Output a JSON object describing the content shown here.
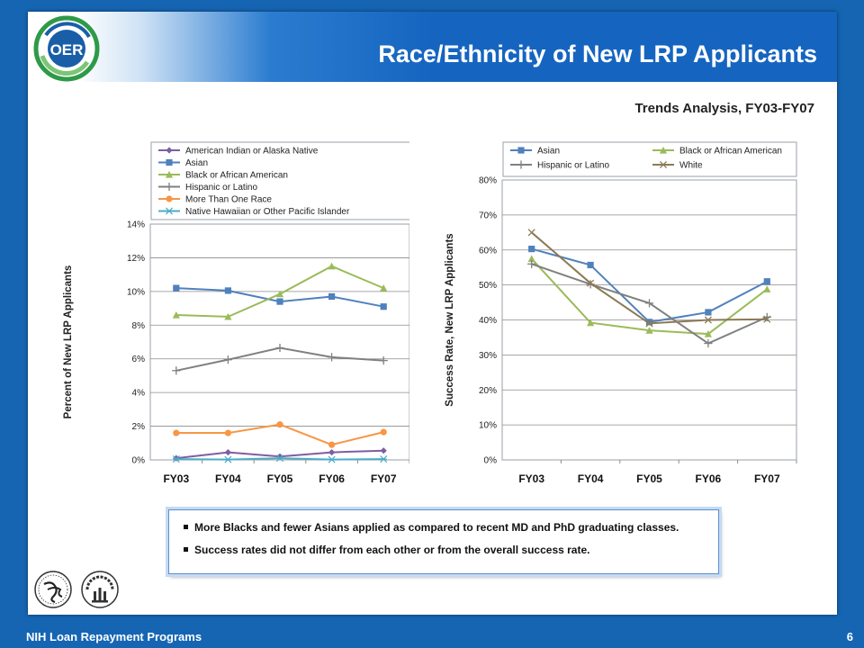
{
  "header": {
    "title": "Race/Ethnicity of New LRP Applicants",
    "logo_text": "OER"
  },
  "subtitle": "Trends Analysis, FY03-FY07",
  "chart_data": [
    {
      "type": "line",
      "ylabel": "Percent of New LRP Applicants",
      "categories": [
        "FY03",
        "FY04",
        "FY05",
        "FY06",
        "FY07"
      ],
      "ylim": [
        0,
        14
      ],
      "yticks": [
        0,
        2,
        4,
        6,
        8,
        10,
        12,
        14
      ],
      "ytick_suffix": "%",
      "legend_position": "top",
      "grid": true,
      "series": [
        {
          "name": "American Indian or Alaska Native",
          "values": [
            0.1,
            0.45,
            0.2,
            0.45,
            0.55
          ],
          "color": "#7e5ea1",
          "marker": "diamond"
        },
        {
          "name": "Asian",
          "values": [
            10.2,
            10.05,
            9.4,
            9.7,
            9.1
          ],
          "color": "#4f81bd",
          "marker": "square"
        },
        {
          "name": "Black or African American",
          "values": [
            8.6,
            8.5,
            9.85,
            11.5,
            10.2
          ],
          "color": "#9bbb59",
          "marker": "triangle"
        },
        {
          "name": "Hispanic or Latino",
          "values": [
            5.3,
            5.95,
            6.65,
            6.1,
            5.9
          ],
          "color": "#808080",
          "marker": "plus"
        },
        {
          "name": "More Than One Race",
          "values": [
            1.6,
            1.6,
            2.1,
            0.9,
            1.65
          ],
          "color": "#f79646",
          "marker": "circle"
        },
        {
          "name": "Native Hawaiian or Other Pacific Islander",
          "values": [
            0.05,
            0.02,
            0.1,
            0.02,
            0.05
          ],
          "color": "#4bacc6",
          "marker": "star"
        }
      ]
    },
    {
      "type": "line",
      "ylabel": "Success Rate, New LRP Applicants",
      "categories": [
        "FY03",
        "FY04",
        "FY05",
        "FY06",
        "FY07"
      ],
      "ylim": [
        0,
        80
      ],
      "yticks": [
        0,
        10,
        20,
        30,
        40,
        50,
        60,
        70,
        80
      ],
      "ytick_suffix": "%",
      "legend_position": "top",
      "grid": true,
      "series": [
        {
          "name": "Asian",
          "values": [
            60.3,
            55.7,
            39.4,
            42.2,
            51.0
          ],
          "color": "#4f81bd",
          "marker": "square"
        },
        {
          "name": "Black or African American",
          "values": [
            57.5,
            39.2,
            37.0,
            36.0,
            48.8
          ],
          "color": "#9bbb59",
          "marker": "triangle"
        },
        {
          "name": "Hispanic or Latino",
          "values": [
            56.0,
            50.2,
            44.8,
            33.3,
            40.8
          ],
          "color": "#808080",
          "marker": "plus"
        },
        {
          "name": "White",
          "values": [
            65.0,
            50.5,
            39.0,
            40.0,
            40.2
          ],
          "color": "#8c7a56",
          "marker": "x"
        }
      ]
    }
  ],
  "callout": {
    "bullets": [
      "More Blacks and fewer Asians applied as compared to recent MD and PhD graduating classes.",
      "Success rates did not differ from each other or from the overall success rate."
    ]
  },
  "footer": {
    "left": "NIH Loan Repayment Programs",
    "page_number": "6",
    "hhs_logo": "hhs-eagle-seal",
    "nih_logo": "National Institutes of Health"
  }
}
